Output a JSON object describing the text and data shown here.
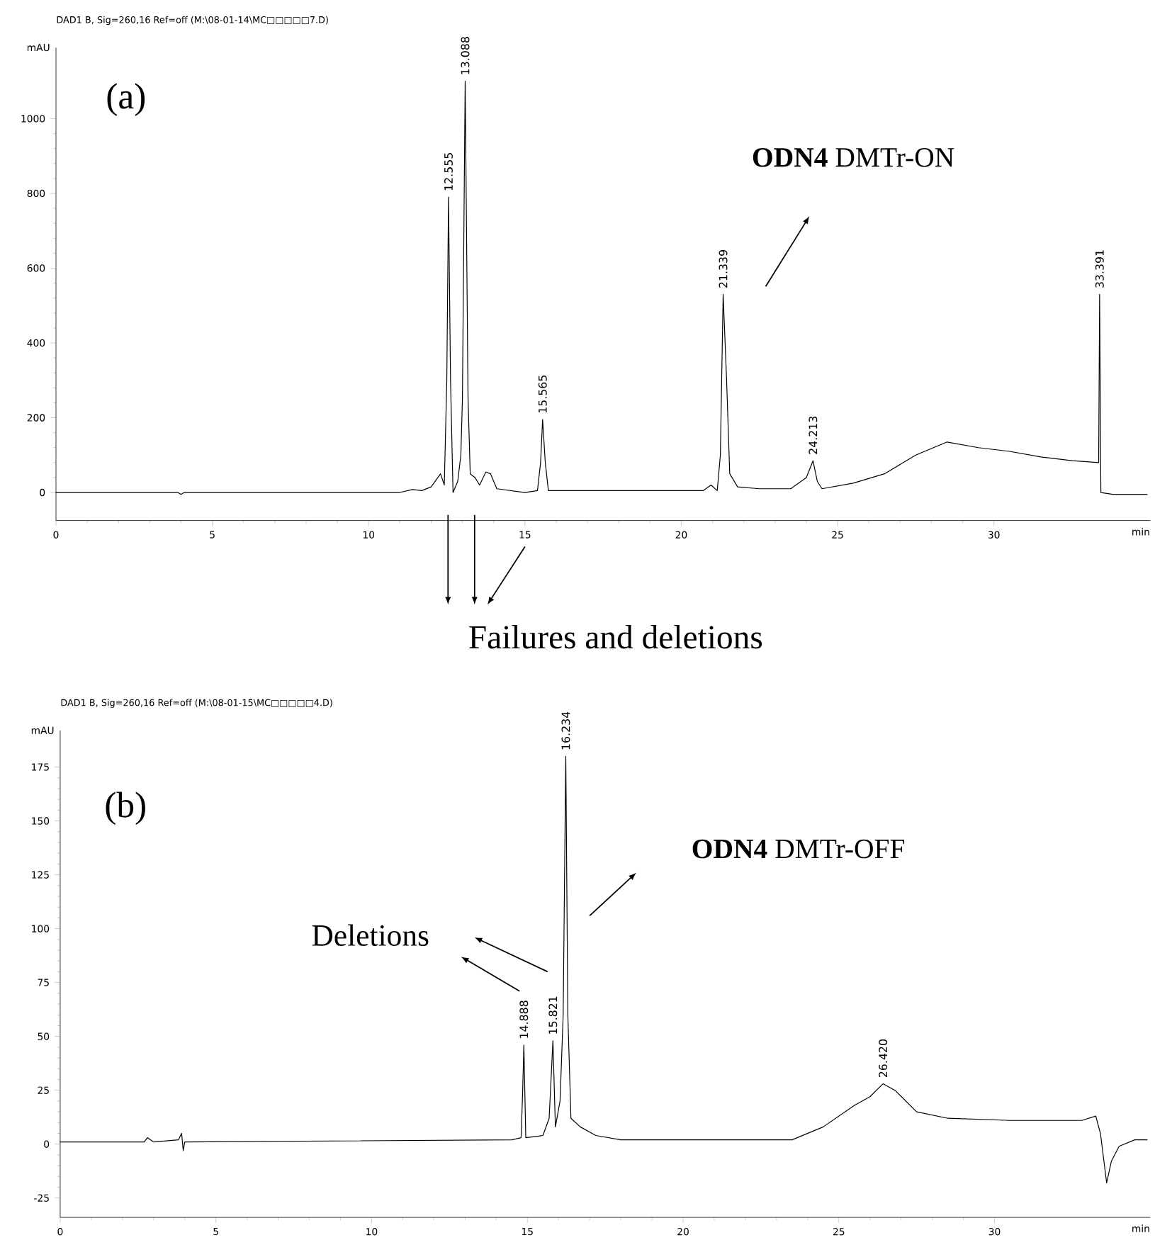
{
  "chart_data": [
    {
      "type": "line",
      "title": "(a)",
      "subtitle": "DAD1 B, Sig=260,16 Ref=off (M:\\08-01-14\\MC□□□□□7.D)",
      "xlabel": "min",
      "ylabel": "mAU",
      "xlim": [
        0,
        35
      ],
      "ylim": [
        -75,
        1190
      ],
      "xticks": [
        0,
        5,
        10,
        15,
        20,
        25,
        30
      ],
      "yticks": [
        0,
        200,
        400,
        600,
        800,
        1000
      ],
      "series": [
        {
          "color": "#000000",
          "x": [
            0,
            3.9,
            4.0,
            4.1,
            11.0,
            11.4,
            11.7,
            12.0,
            12.3,
            12.42,
            12.5,
            12.555,
            12.62,
            12.7,
            12.85,
            12.95,
            13.0,
            13.088,
            13.18,
            13.25,
            13.4,
            13.55,
            13.75,
            13.9,
            14.1,
            15.0,
            15.4,
            15.5,
            15.565,
            15.65,
            15.75,
            16.5,
            20.7,
            20.95,
            21.15,
            21.25,
            21.339,
            21.45,
            21.55,
            21.8,
            22.5,
            23.5,
            24.0,
            24.213,
            24.35,
            24.5,
            25.5,
            26.5,
            27.5,
            28.5,
            29.5,
            30.5,
            31.5,
            32.5,
            33.35,
            33.38,
            33.42,
            33.8,
            34.9
          ],
          "values": [
            0,
            0,
            -5,
            0,
            0,
            8,
            5,
            15,
            50,
            20,
            300,
            790,
            300,
            0,
            30,
            100,
            250,
            1100,
            250,
            50,
            40,
            20,
            55,
            50,
            10,
            0,
            5,
            80,
            195,
            80,
            5,
            5,
            5,
            20,
            5,
            100,
            530,
            300,
            50,
            15,
            10,
            10,
            40,
            85,
            30,
            10,
            25,
            50,
            100,
            135,
            120,
            110,
            95,
            85,
            80,
            530,
            0,
            -5,
            -5
          ]
        }
      ],
      "annotations": [
        "**ODN4** DMTr-ON",
        "Failures and deletions",
        {
          "text": "12.555",
          "x": 12.555,
          "y": 790
        },
        {
          "text": "13.088",
          "x": 13.088,
          "y": 1100
        },
        {
          "text": "15.565",
          "x": 15.565,
          "y": 195
        },
        {
          "text": "21.339",
          "x": 21.339,
          "y": 530
        },
        {
          "text": "24.213",
          "x": 24.213,
          "y": 85
        },
        {
          "text": "33.391",
          "x": 33.38,
          "y": 530
        }
      ]
    },
    {
      "type": "line",
      "title": "(b)",
      "subtitle": "DAD1 B, Sig=260,16 Ref=off (M:\\08-01-15\\MC□□□□□4.D)",
      "xlabel": "min",
      "ylabel": "mAU",
      "xlim": [
        0,
        35
      ],
      "ylim": [
        -34,
        192
      ],
      "xticks": [
        0,
        5,
        10,
        15,
        20,
        25,
        30
      ],
      "yticks": [
        -25,
        0,
        25,
        50,
        75,
        100,
        125,
        150,
        175
      ],
      "series": [
        {
          "color": "#000000",
          "x": [
            0,
            2.7,
            2.8,
            3.0,
            3.8,
            3.9,
            3.95,
            4.0,
            14.5,
            14.8,
            14.85,
            14.888,
            14.95,
            15.5,
            15.7,
            15.821,
            15.9,
            16.05,
            16.15,
            16.234,
            16.3,
            16.4,
            16.7,
            17.2,
            18,
            23.5,
            24.5,
            25.5,
            26.0,
            26.42,
            26.8,
            27.5,
            28.5,
            30.5,
            32.8,
            33.25,
            33.4,
            33.6,
            33.75,
            34.0,
            34.5,
            34.9
          ],
          "values": [
            1,
            1,
            3,
            1,
            2,
            5,
            -3,
            1,
            2,
            3,
            25,
            46,
            3,
            4,
            12,
            48,
            8,
            20,
            60,
            180,
            60,
            12,
            8,
            4,
            2,
            2,
            8,
            18,
            22,
            28,
            25,
            15,
            12,
            11,
            11,
            13,
            5,
            -18,
            -8,
            -1,
            2,
            2
          ]
        }
      ],
      "annotations": [
        "Deletions",
        "**ODN4** DMTr-OFF",
        {
          "text": "14.888",
          "x": 14.888,
          "y": 46
        },
        {
          "text": "15.821",
          "x": 15.821,
          "y": 48
        },
        {
          "text": "16.234",
          "x": 16.234,
          "y": 180
        },
        {
          "text": "26.420",
          "x": 26.42,
          "y": 28
        }
      ]
    }
  ]
}
